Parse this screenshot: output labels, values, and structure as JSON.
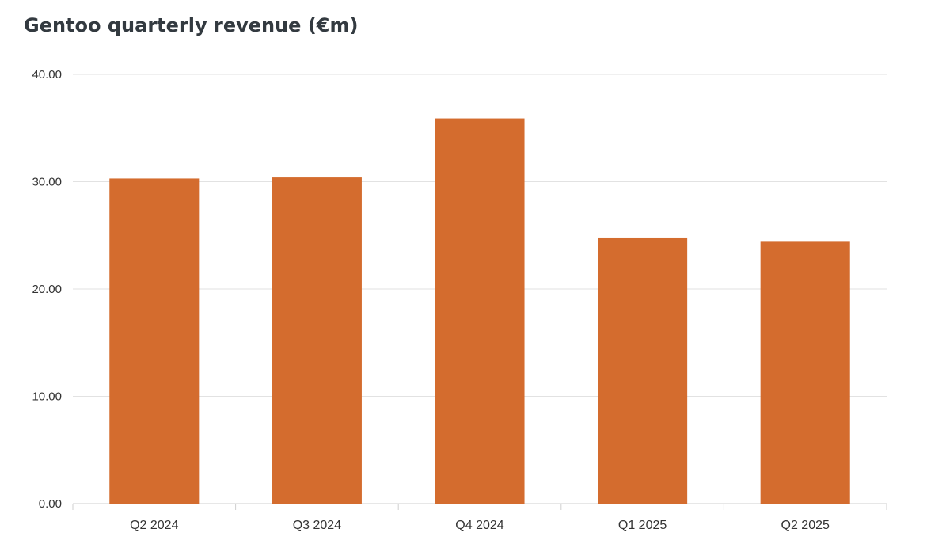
{
  "chart_data": {
    "type": "bar",
    "title": "Gentoo quarterly revenue (€m)",
    "xlabel": "",
    "ylabel": "",
    "categories": [
      "Q2 2024",
      "Q3 2024",
      "Q4 2024",
      "Q1 2025",
      "Q2 2025"
    ],
    "series": [
      {
        "values": [
          30.3,
          30.4,
          35.9,
          24.8,
          24.4
        ]
      }
    ],
    "ylim": [
      0,
      40
    ],
    "yticks": [
      "0.00",
      "10.00",
      "20.00",
      "30.00",
      "40.00"
    ],
    "grid": true,
    "legend": "none",
    "bar_color": "#d46c2e"
  }
}
